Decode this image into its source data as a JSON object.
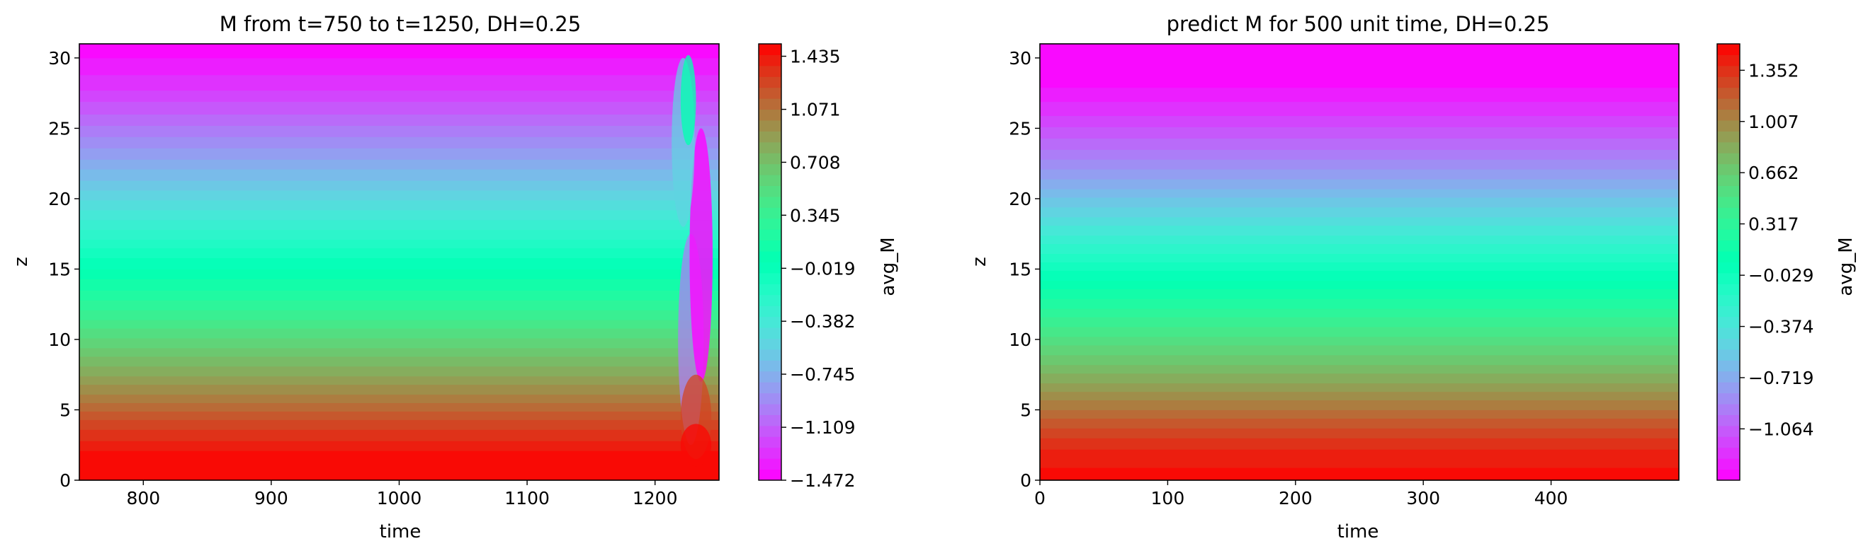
{
  "chart_data": [
    {
      "type": "heatmap",
      "subtype": "filled-contour",
      "title": "M from t=750 to t=1250, DH=0.25",
      "xlabel": "time",
      "ylabel": "z",
      "xlim": [
        750,
        1250
      ],
      "ylim": [
        0,
        31
      ],
      "x_ticks": [
        800,
        900,
        1000,
        1100,
        1200
      ],
      "y_ticks": [
        0,
        5,
        10,
        15,
        20,
        25,
        30
      ],
      "colormap": "rainbow",
      "colorbar": {
        "label": "avg_M",
        "range": [
          -1.472,
          1.52
        ],
        "ticks": [
          "1.435",
          "1.071",
          "0.708",
          "0.345",
          "−0.019",
          "−0.382",
          "−0.745",
          "−1.109",
          "−1.472"
        ]
      },
      "z_profile": {
        "z": [
          0,
          2,
          4,
          6,
          8,
          10,
          12,
          14,
          16,
          18,
          20,
          22,
          24,
          26,
          28,
          30
        ],
        "M": [
          1.48,
          1.45,
          1.25,
          1.0,
          0.78,
          0.55,
          0.33,
          0.12,
          -0.08,
          -0.3,
          -0.52,
          -0.72,
          -0.92,
          -1.1,
          -1.28,
          -1.4
        ]
      },
      "features": "profile shifts upward over time; a disturbance near t=1200–1250 with a local maximum near z≈27"
    },
    {
      "type": "heatmap",
      "subtype": "filled-contour",
      "title": "predict M for 500 unit time, DH=0.25",
      "xlabel": "time",
      "ylabel": "z",
      "xlim": [
        0,
        500
      ],
      "ylim": [
        0,
        31
      ],
      "x_ticks": [
        0,
        100,
        200,
        300,
        400
      ],
      "y_ticks": [
        0,
        5,
        10,
        15,
        20,
        25,
        30
      ],
      "colormap": "rainbow",
      "colorbar": {
        "label": "avg_M",
        "range": [
          -1.41,
          1.53
        ],
        "ticks": [
          "1.352",
          "1.007",
          "0.662",
          "0.317",
          "−0.029",
          "−0.374",
          "−0.719",
          "−1.064"
        ]
      },
      "z_profile": {
        "z": [
          0,
          2,
          4,
          6,
          8,
          10,
          12,
          14,
          16,
          18,
          20,
          22,
          24,
          26,
          28,
          30
        ],
        "M": [
          1.5,
          1.4,
          1.2,
          0.97,
          0.74,
          0.52,
          0.3,
          0.08,
          -0.15,
          -0.38,
          -0.6,
          -0.82,
          -1.02,
          -1.2,
          -1.35,
          -1.4
        ]
      }
    }
  ]
}
